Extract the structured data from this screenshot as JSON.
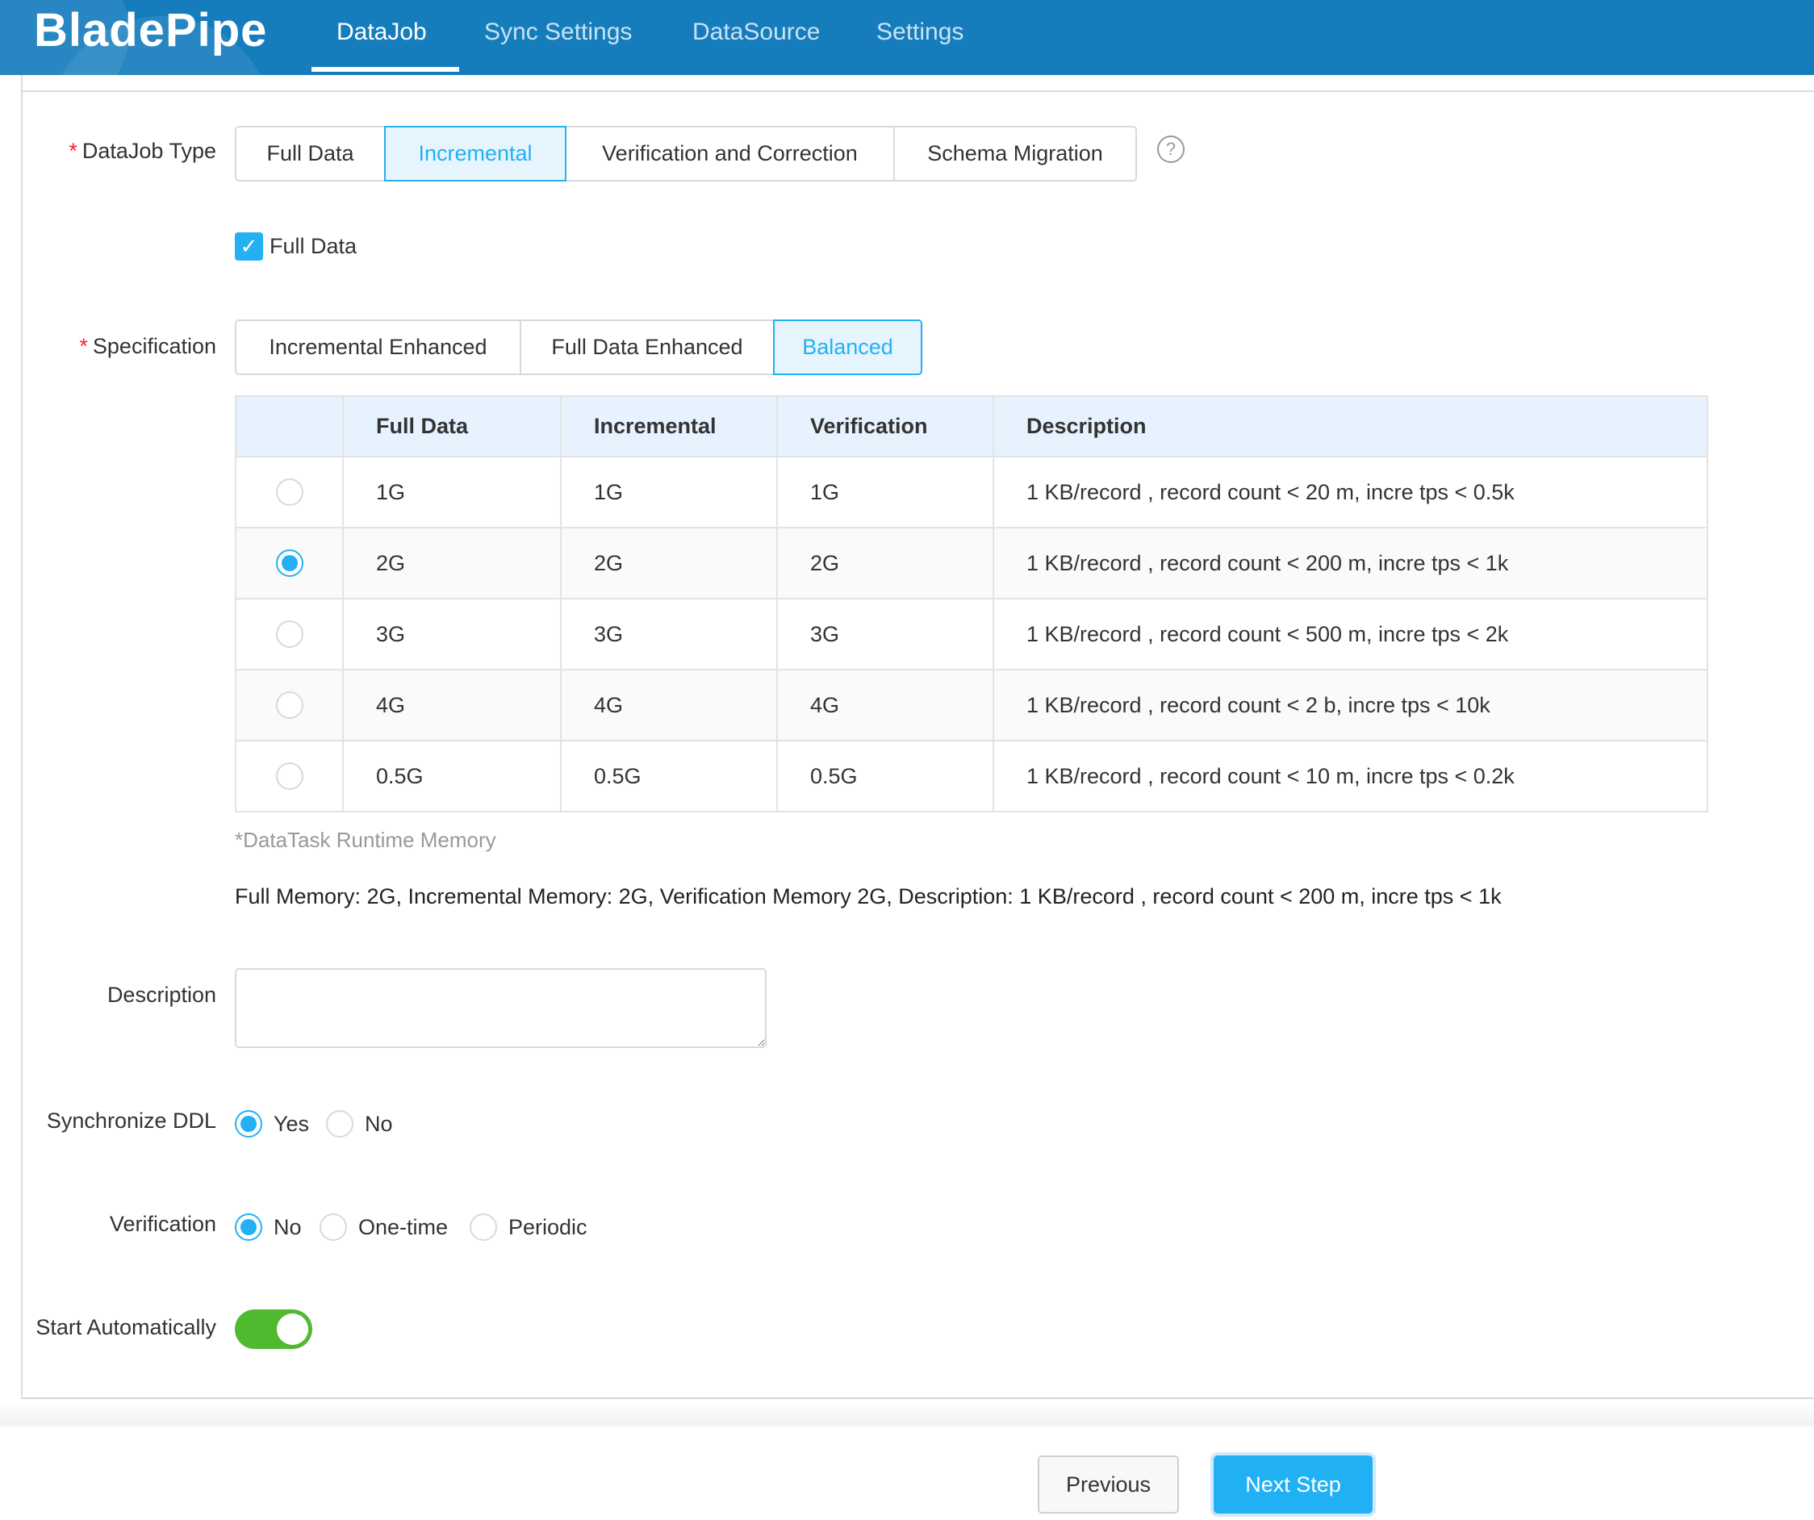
{
  "header": {
    "logo": "BladePipe",
    "nav": [
      "DataJob",
      "Sync Settings",
      "DataSource",
      "Settings"
    ],
    "active_nav": "DataJob"
  },
  "colors": {
    "header": "#167dbd",
    "accent": "#24b0f3",
    "toggle_on": "#4fb92f",
    "required": "#f5222d"
  },
  "form": {
    "datajob_type": {
      "label": "DataJob Type",
      "options": [
        "Full Data",
        "Incremental",
        "Verification and Correction",
        "Schema Migration"
      ],
      "selected": "Incremental",
      "help_icon": "question-circle-icon"
    },
    "full_data_checkbox": {
      "label": "Full Data",
      "checked": true
    },
    "specification": {
      "label": "Specification",
      "options": [
        "Incremental Enhanced",
        "Full Data Enhanced",
        "Balanced"
      ],
      "selected": "Balanced"
    },
    "spec_table": {
      "headers": [
        "",
        "Full Data",
        "Incremental",
        "Verification",
        "Description"
      ],
      "rows": [
        {
          "full": "1G",
          "incr": "1G",
          "verif": "1G",
          "desc": "1 KB/record , record count < 20 m, incre tps < 0.5k",
          "selected": false
        },
        {
          "full": "2G",
          "incr": "2G",
          "verif": "2G",
          "desc": "1 KB/record , record count < 200 m, incre tps < 1k",
          "selected": true
        },
        {
          "full": "3G",
          "incr": "3G",
          "verif": "3G",
          "desc": "1 KB/record , record count < 500 m, incre tps < 2k",
          "selected": false
        },
        {
          "full": "4G",
          "incr": "4G",
          "verif": "4G",
          "desc": "1 KB/record , record count < 2 b, incre tps < 10k",
          "selected": false
        },
        {
          "full": "0.5G",
          "incr": "0.5G",
          "verif": "0.5G",
          "desc": "1 KB/record , record count < 10 m, incre tps < 0.2k",
          "selected": false
        }
      ]
    },
    "runtime_note": "*DataTask Runtime Memory",
    "summary": "Full Memory: 2G, Incremental Memory: 2G, Verification Memory 2G, Description: 1 KB/record , record count < 200 m, incre tps < 1k",
    "description": {
      "label": "Description",
      "value": ""
    },
    "sync_ddl": {
      "label": "Synchronize DDL",
      "options": [
        "Yes",
        "No"
      ],
      "selected": "Yes"
    },
    "verification": {
      "label": "Verification",
      "options": [
        "No",
        "One-time",
        "Periodic"
      ],
      "selected": "No"
    },
    "start_auto": {
      "label": "Start Automatically",
      "on": true
    }
  },
  "footer": {
    "previous": "Previous",
    "next": "Next Step"
  }
}
